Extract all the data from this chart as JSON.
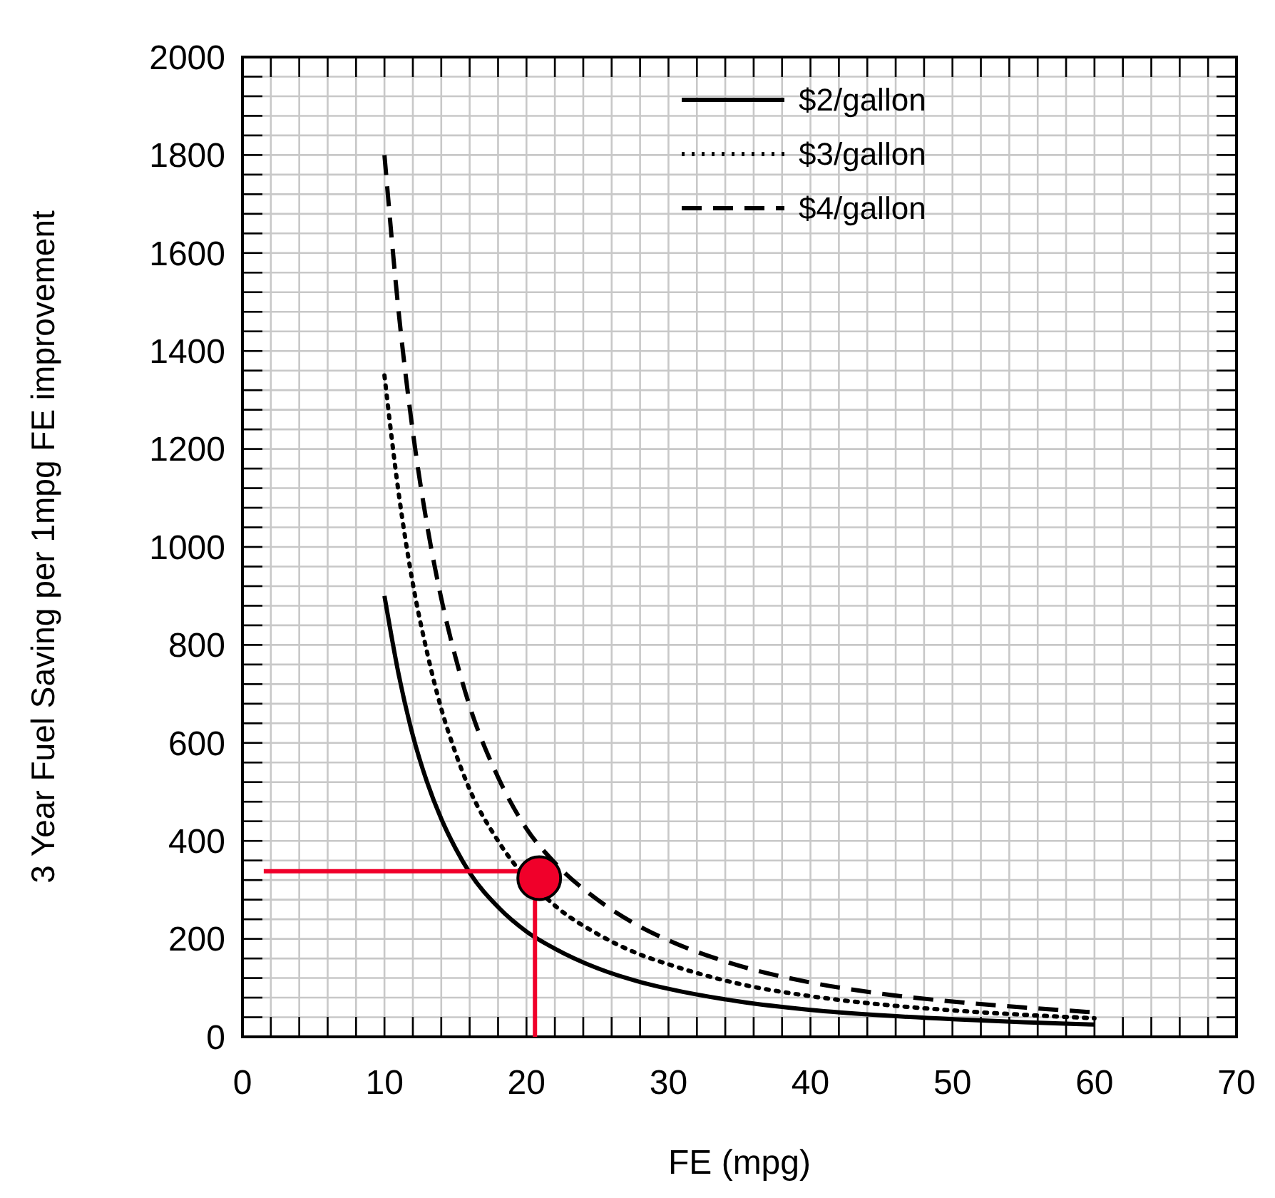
{
  "chart_data": {
    "type": "line",
    "xlabel": "FE (mpg)",
    "ylabel": "3 Year Fuel Saving per 1mpg FE improvement",
    "xlim": [
      0,
      70
    ],
    "ylim": [
      0,
      2000
    ],
    "xticks": [
      0,
      {
        "value": 2,
        "label": null
      },
      {
        "value": 4,
        "label": null
      },
      {
        "value": 6,
        "label": null
      },
      {
        "value": 8,
        "label": null
      },
      10,
      {
        "value": 12,
        "label": null
      },
      {
        "value": 14,
        "label": null
      },
      {
        "value": 16,
        "label": null
      },
      {
        "value": 18,
        "label": null
      },
      20,
      {
        "value": 22,
        "label": null
      },
      {
        "value": 24,
        "label": null
      },
      {
        "value": 26,
        "label": null
      },
      {
        "value": 28,
        "label": null
      },
      30,
      {
        "value": 32,
        "label": null
      },
      {
        "value": 34,
        "label": null
      },
      {
        "value": 36,
        "label": null
      },
      {
        "value": 38,
        "label": null
      },
      40,
      {
        "value": 42,
        "label": null
      },
      {
        "value": 44,
        "label": null
      },
      {
        "value": 46,
        "label": null
      },
      {
        "value": 48,
        "label": null
      },
      50,
      {
        "value": 52,
        "label": null
      },
      {
        "value": 54,
        "label": null
      },
      {
        "value": 56,
        "label": null
      },
      {
        "value": 58,
        "label": null
      },
      60,
      {
        "value": 62,
        "label": null
      },
      {
        "value": 64,
        "label": null
      },
      {
        "value": 66,
        "label": null
      },
      {
        "value": 68,
        "label": null
      },
      70
    ],
    "yticks": [
      0,
      {
        "value": 40,
        "label": null
      },
      {
        "value": 80,
        "label": null
      },
      {
        "value": 120,
        "label": null
      },
      {
        "value": 160,
        "label": null
      },
      200,
      {
        "value": 240,
        "label": null
      },
      {
        "value": 280,
        "label": null
      },
      {
        "value": 320,
        "label": null
      },
      {
        "value": 360,
        "label": null
      },
      400,
      {
        "value": 440,
        "label": null
      },
      {
        "value": 480,
        "label": null
      },
      {
        "value": 520,
        "label": null
      },
      {
        "value": 560,
        "label": null
      },
      600,
      {
        "value": 640,
        "label": null
      },
      {
        "value": 680,
        "label": null
      },
      {
        "value": 720,
        "label": null
      },
      {
        "value": 760,
        "label": null
      },
      800,
      {
        "value": 840,
        "label": null
      },
      {
        "value": 880,
        "label": null
      },
      {
        "value": 920,
        "label": null
      },
      {
        "value": 960,
        "label": null
      },
      1000,
      {
        "value": 1040,
        "label": null
      },
      {
        "value": 1080,
        "label": null
      },
      {
        "value": 1120,
        "label": null
      },
      {
        "value": 1160,
        "label": null
      },
      1200,
      {
        "value": 1240,
        "label": null
      },
      {
        "value": 1280,
        "label": null
      },
      {
        "value": 1320,
        "label": null
      },
      {
        "value": 1360,
        "label": null
      },
      1400,
      {
        "value": 1440,
        "label": null
      },
      {
        "value": 1480,
        "label": null
      },
      {
        "value": 1520,
        "label": null
      },
      {
        "value": 1560,
        "label": null
      },
      1600,
      {
        "value": 1640,
        "label": null
      },
      {
        "value": 1680,
        "label": null
      },
      {
        "value": 1720,
        "label": null
      },
      {
        "value": 1760,
        "label": null
      },
      1800,
      {
        "value": 1840,
        "label": null
      },
      {
        "value": 1880,
        "label": null
      },
      {
        "value": 1920,
        "label": null
      },
      {
        "value": 1960,
        "label": null
      },
      2000
    ],
    "grid": true,
    "legend": "top right",
    "x": [
      10,
      11,
      12,
      13,
      14,
      15,
      16,
      18,
      20,
      22,
      25,
      28,
      30,
      35,
      40,
      45,
      50,
      55,
      60
    ],
    "series": [
      {
        "name": "$2/gallon",
        "color": "#000000",
        "line_style": "solid",
        "values": [
          900,
          740,
          615,
          520,
          445,
          385,
          335,
          265,
          215,
          180,
          140,
          112,
          98,
          72,
          55,
          44,
          36,
          30,
          25
        ]
      },
      {
        "name": "$3/gallon",
        "color": "#000000",
        "line_style": "dotted",
        "x": [
          10,
          11,
          12,
          13,
          14,
          15,
          16,
          18,
          22,
          25,
          28,
          30,
          35,
          40,
          45,
          50,
          55,
          60
        ],
        "values": [
          1350,
          1110,
          925,
          785,
          670,
          580,
          505,
          400,
          268,
          210,
          168,
          148,
          108,
          83,
          66,
          54,
          45,
          38
        ]
      },
      {
        "name": "$4/gallon",
        "color": "#000000",
        "line_style": "dashed",
        "values": [
          1800,
          1480,
          1235,
          1045,
          895,
          775,
          675,
          530,
          425,
          355,
          280,
          225,
          197,
          145,
          111,
          88,
          72,
          60,
          50
        ]
      },
      {
        "type": "line",
        "color": "#f0002a",
        "line_style": "solid",
        "x": [
          1.5,
          20.6,
          20.6
        ],
        "values": [
          338,
          338,
          0
        ]
      },
      {
        "type": "scatter",
        "color": "#f0002a",
        "marker": "circle",
        "x": [
          20.9
        ],
        "values": [
          324
        ]
      }
    ]
  }
}
